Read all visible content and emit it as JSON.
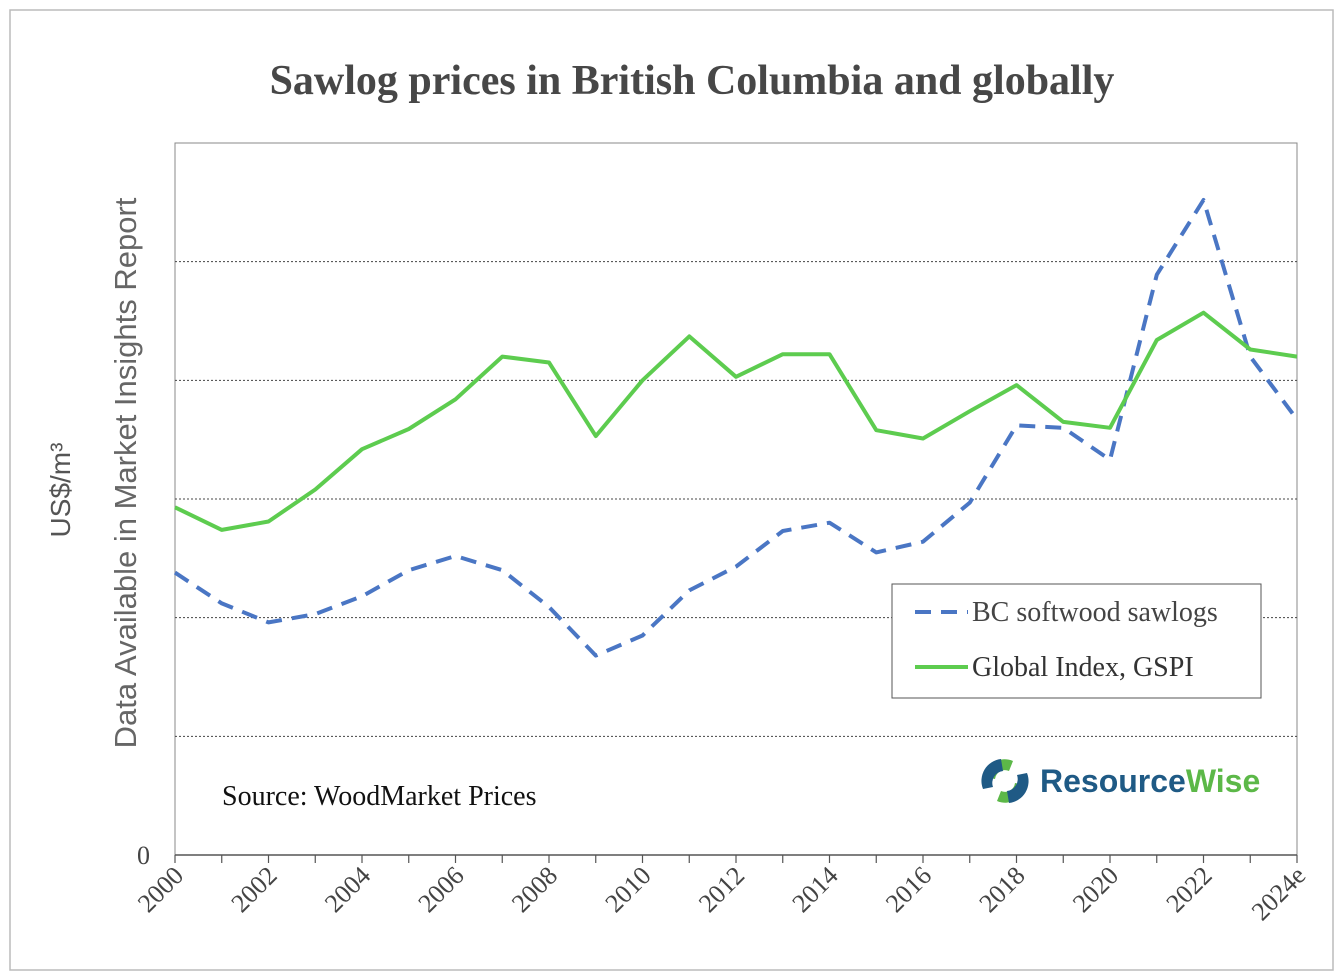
{
  "chart_data": {
    "type": "line",
    "title": "Sawlog prices in British Columbia and globally",
    "ylabel": "US$/m³",
    "ylabel_overlay": "Data Available in Market Insights Report",
    "xlabel": "",
    "x": [
      2000,
      2001,
      2002,
      2003,
      2004,
      2005,
      2006,
      2007,
      2008,
      2009,
      2010,
      2011,
      2012,
      2013,
      2014,
      2015,
      2016,
      2017,
      2018,
      2019,
      2020,
      2021,
      2022,
      2023,
      2024
    ],
    "x_tick_labels": [
      "2000",
      "2002",
      "2004",
      "2006",
      "2008",
      "2010",
      "2012",
      "2014",
      "2016",
      "2018",
      "2020",
      "2022",
      "2024e"
    ],
    "y_tick_labels": [
      "0"
    ],
    "ylim": [
      0,
      6
    ],
    "grid": "horizontal dotted",
    "legend_placement": "lower-right",
    "series": [
      {
        "name": "BC softwood sawlogs",
        "style": "dashed",
        "color": "#4a76c4",
        "values": [
          2.38,
          2.12,
          1.96,
          2.03,
          2.18,
          2.4,
          2.52,
          2.4,
          2.09,
          1.68,
          1.85,
          2.23,
          2.43,
          2.73,
          2.8,
          2.55,
          2.64,
          2.97,
          3.62,
          3.6,
          3.33,
          4.89,
          5.52,
          4.2,
          3.67
        ]
      },
      {
        "name": "Global Index, GSPI",
        "style": "solid",
        "color": "#5dcc4f",
        "values": [
          2.93,
          2.74,
          2.81,
          3.08,
          3.42,
          3.59,
          3.84,
          4.2,
          4.15,
          3.53,
          4.0,
          4.37,
          4.03,
          4.22,
          4.22,
          3.58,
          3.51,
          3.74,
          3.96,
          3.65,
          3.6,
          4.34,
          4.57,
          4.26,
          4.2
        ]
      }
    ],
    "annotations": {
      "source": "Source: WoodMarket Prices"
    }
  },
  "logo": {
    "text_part1": "Resource",
    "text_part2": "Wise",
    "colors": {
      "blue": "#1f5a85",
      "green": "#5cb848"
    }
  }
}
